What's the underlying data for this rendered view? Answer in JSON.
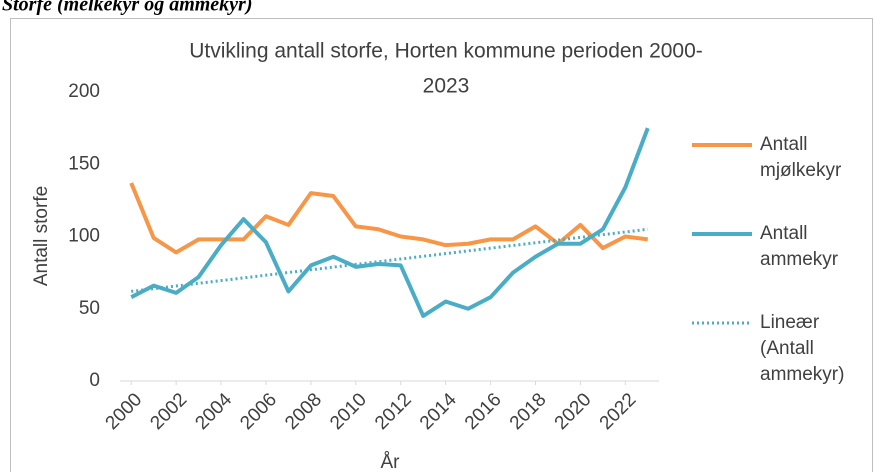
{
  "caption": "Storfe (melkekyr og ammekyr)",
  "chart_data": {
    "type": "line",
    "title": [
      "Utvikling antall storfe, Horten kommune perioden 2000-",
      "2023"
    ],
    "x_label": "År",
    "y_label": "Antall storfe",
    "x": [
      2000,
      2001,
      2002,
      2003,
      2004,
      2005,
      2006,
      2007,
      2008,
      2009,
      2010,
      2011,
      2012,
      2013,
      2014,
      2015,
      2016,
      2017,
      2018,
      2019,
      2020,
      2021,
      2022,
      2023
    ],
    "series": [
      {
        "name": "Antall mjølkekyr",
        "color": "#f79646",
        "values": [
          137,
          99,
          89,
          98,
          98,
          98,
          114,
          108,
          130,
          128,
          107,
          105,
          100,
          98,
          94,
          95,
          98,
          98,
          107,
          95,
          108,
          92,
          100,
          98
        ]
      },
      {
        "name": "Antall ammekyr",
        "color": "#4bacc6",
        "values": [
          58,
          66,
          61,
          72,
          94,
          112,
          96,
          62,
          80,
          86,
          79,
          81,
          80,
          45,
          55,
          50,
          58,
          75,
          86,
          95,
          95,
          105,
          134,
          175
        ]
      },
      {
        "name": "Lineær (Antall ammekyr)",
        "color": "#4bacc6",
        "dashed": true,
        "x": [
          2000,
          2023
        ],
        "values": [
          62,
          105
        ]
      }
    ],
    "xlim": [
      1999.5,
      2023.5
    ],
    "xticks": [
      2000,
      2002,
      2004,
      2006,
      2008,
      2010,
      2012,
      2014,
      2016,
      2018,
      2020,
      2022
    ],
    "ylim": [
      0,
      200
    ],
    "yticks": [
      0,
      50,
      100,
      150,
      200
    ],
    "grid": false,
    "legend": "right"
  }
}
